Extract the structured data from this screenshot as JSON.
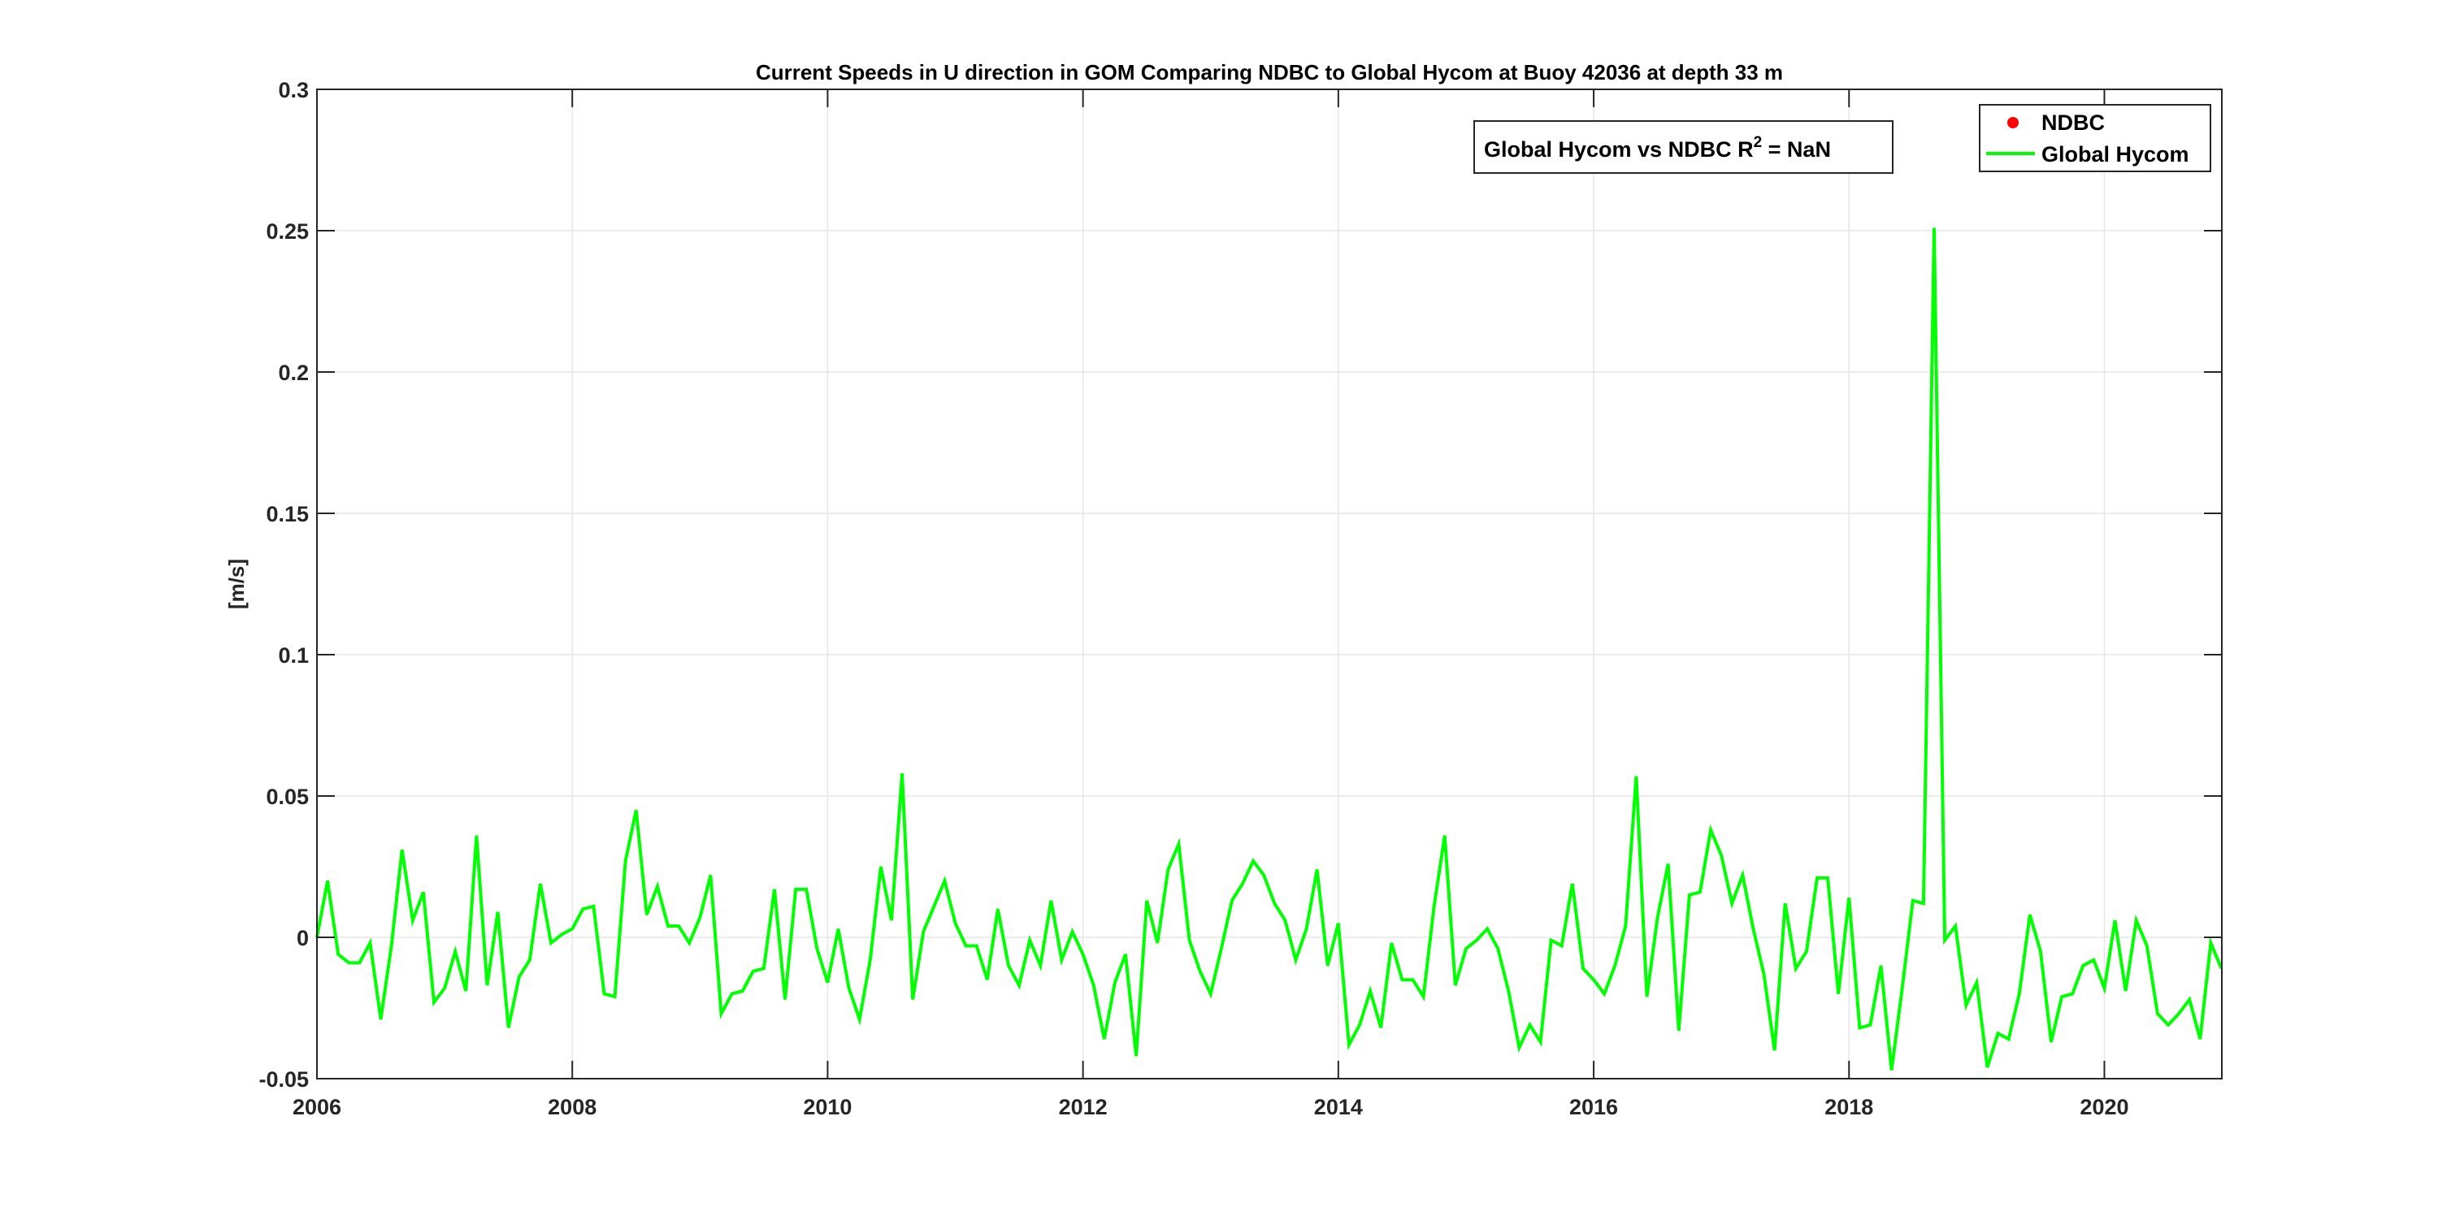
{
  "chart_data": {
    "type": "line",
    "title": "Current Speeds in U direction in GOM Comparing NDBC to Global Hycom at Buoy  42036  at depth  33 m",
    "xlabel": "",
    "ylabel": "[m/s]",
    "xlim": [
      2006,
      2020.92
    ],
    "ylim": [
      -0.05,
      0.3
    ],
    "xticks": [
      "2006",
      "2008",
      "2010",
      "2012",
      "2014",
      "2016",
      "2018",
      "2020"
    ],
    "yticks": [
      "-0.05",
      "0",
      "0.05",
      "0.1",
      "0.15",
      "0.2",
      "0.25",
      "0.3"
    ],
    "grid": true,
    "legend_position": "top-right",
    "annotation": {
      "prefix": "Global Hycom vs NDBC R",
      "superscript": "2",
      "suffix": " = NaN"
    },
    "series": [
      {
        "name": "NDBC",
        "color": "#ff0000",
        "marker": "dot",
        "values": []
      },
      {
        "name": "Global Hycom",
        "color": "#00ff00",
        "x_start": 2006.0,
        "x_step": 0.0833333,
        "values": [
          0.0,
          0.02,
          -0.006,
          -0.009,
          -0.009,
          -0.002,
          -0.029,
          -0.003,
          0.031,
          0.006,
          0.016,
          -0.023,
          -0.018,
          -0.005,
          -0.019,
          0.036,
          -0.017,
          0.009,
          -0.032,
          -0.014,
          -0.008,
          0.019,
          -0.002,
          0.001,
          0.003,
          0.01,
          0.011,
          -0.02,
          -0.021,
          0.027,
          0.045,
          0.008,
          0.018,
          0.004,
          0.004,
          -0.002,
          0.007,
          0.022,
          -0.027,
          -0.02,
          -0.019,
          -0.012,
          -0.011,
          0.017,
          -0.022,
          0.017,
          0.017,
          -0.004,
          -0.016,
          0.003,
          -0.018,
          -0.029,
          -0.008,
          0.025,
          0.006,
          0.058,
          -0.022,
          0.002,
          0.011,
          0.02,
          0.005,
          -0.003,
          -0.003,
          -0.015,
          0.01,
          -0.01,
          -0.017,
          -0.001,
          -0.01,
          0.013,
          -0.008,
          0.002,
          -0.006,
          -0.017,
          -0.036,
          -0.016,
          -0.006,
          -0.042,
          0.013,
          -0.002,
          0.024,
          0.033,
          -0.001,
          -0.012,
          -0.02,
          -0.004,
          0.013,
          0.019,
          0.027,
          0.022,
          0.012,
          0.006,
          -0.008,
          0.003,
          0.024,
          -0.01,
          0.005,
          -0.038,
          -0.031,
          -0.019,
          -0.032,
          -0.002,
          -0.015,
          -0.015,
          -0.021,
          0.011,
          0.036,
          -0.017,
          -0.004,
          -0.001,
          0.003,
          -0.004,
          -0.019,
          -0.039,
          -0.031,
          -0.037,
          -0.001,
          -0.003,
          0.019,
          -0.011,
          -0.015,
          -0.02,
          -0.01,
          0.004,
          0.057,
          -0.021,
          0.007,
          0.026,
          -0.033,
          0.015,
          0.016,
          0.038,
          0.029,
          0.012,
          0.022,
          0.003,
          -0.013,
          -0.04,
          0.012,
          -0.011,
          -0.005,
          0.021,
          0.021,
          -0.02,
          0.014,
          -0.032,
          -0.031,
          -0.01,
          -0.047,
          -0.018,
          0.013,
          0.012,
          0.251,
          -0.001,
          0.004,
          -0.024,
          -0.016,
          -0.046,
          -0.034,
          -0.036,
          -0.02,
          0.008,
          -0.005,
          -0.037,
          -0.021,
          -0.02,
          -0.01,
          -0.008,
          -0.018,
          0.006,
          -0.019,
          0.006,
          -0.003,
          -0.027,
          -0.031,
          -0.027,
          -0.022,
          -0.036,
          -0.002,
          -0.011
        ]
      }
    ]
  }
}
